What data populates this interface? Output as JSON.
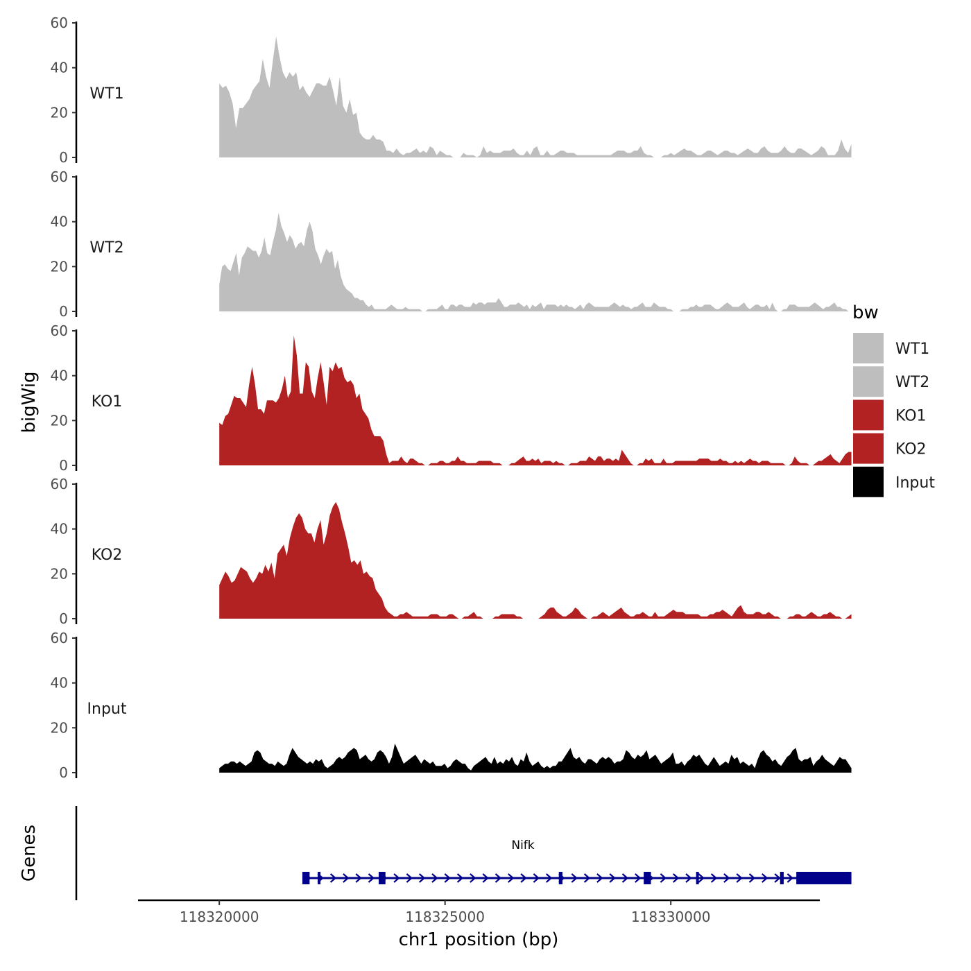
{
  "chart_data": {
    "type": "area",
    "ylabel": "bigWig",
    "xlabel": "chr1 position (bp)",
    "ylim": [
      0,
      60
    ],
    "yticks": [
      0,
      20,
      40,
      60
    ],
    "xlim": [
      118318200,
      118333300
    ],
    "xticks": [
      118320000,
      118325000,
      118330000
    ],
    "xtick_labels": [
      "118320000",
      "118325000",
      "118330000"
    ],
    "x_start": 118320000,
    "x_end": 118334000,
    "tracks": [
      {
        "name": "WT1",
        "label": "WT1",
        "color": "#bebebe",
        "values": [
          33,
          31,
          32,
          29,
          24,
          13,
          22,
          22,
          24,
          26,
          30,
          32,
          34,
          44,
          36,
          31,
          43,
          54,
          45,
          38,
          35,
          38,
          36,
          38,
          30,
          32,
          29,
          27,
          30,
          33,
          33,
          32,
          32,
          36,
          30,
          23,
          36,
          23,
          20,
          26,
          19,
          20,
          11,
          9,
          8,
          8,
          10,
          8,
          8,
          7,
          3,
          3,
          2,
          4,
          2,
          1,
          2,
          2,
          3,
          4,
          2,
          3,
          2,
          5,
          4,
          1,
          3,
          2,
          1,
          1,
          0,
          0,
          0,
          2,
          1,
          1,
          1,
          0,
          1,
          5,
          2,
          3,
          2,
          2,
          2,
          3,
          3,
          3,
          4,
          2,
          1,
          1,
          3,
          1,
          4,
          5,
          1,
          1,
          3,
          1,
          1,
          2,
          3,
          3,
          2,
          2,
          2,
          1,
          1,
          1,
          1,
          1,
          1,
          1,
          1,
          1,
          1,
          1,
          2,
          3,
          3,
          3,
          2,
          2,
          3,
          3,
          5,
          2,
          1,
          1,
          0,
          0,
          0,
          1,
          1,
          2,
          1,
          2,
          3,
          4,
          3,
          3,
          2,
          1,
          1,
          2,
          3,
          3,
          2,
          1,
          2,
          3,
          3,
          2,
          2,
          1,
          2,
          3,
          4,
          3,
          2,
          2,
          4,
          5,
          3,
          2,
          2,
          2,
          3,
          5,
          3,
          2,
          2,
          4,
          4,
          3,
          2,
          1,
          2,
          3,
          5,
          4,
          1,
          1,
          1,
          3,
          8,
          4,
          2,
          6
        ]
      },
      {
        "name": "WT2",
        "label": "WT2",
        "color": "#bebebe",
        "values": [
          12,
          20,
          21,
          19,
          18,
          22,
          26,
          16,
          24,
          26,
          29,
          28,
          27,
          27,
          24,
          27,
          33,
          26,
          25,
          31,
          36,
          44,
          38,
          35,
          31,
          34,
          32,
          28,
          30,
          31,
          29,
          36,
          40,
          36,
          28,
          25,
          21,
          25,
          28,
          26,
          27,
          19,
          23,
          16,
          12,
          10,
          9,
          8,
          6,
          6,
          5,
          5,
          3,
          2,
          3,
          1,
          1,
          1,
          1,
          1,
          2,
          3,
          2,
          1,
          1,
          1,
          2,
          1,
          1,
          1,
          1,
          1,
          0,
          0,
          1,
          1,
          1,
          1,
          2,
          3,
          1,
          1,
          3,
          3,
          2,
          3,
          3,
          2,
          2,
          2,
          4,
          3,
          4,
          4,
          3,
          4,
          4,
          4,
          4,
          6,
          4,
          2,
          2,
          3,
          3,
          3,
          4,
          3,
          2,
          3,
          1,
          3,
          2,
          3,
          4,
          1,
          3,
          3,
          3,
          3,
          2,
          3,
          2,
          3,
          2,
          2,
          1,
          2,
          3,
          1,
          3,
          4,
          3,
          2,
          2,
          2,
          2,
          2,
          2,
          3,
          4,
          3,
          2,
          3,
          2,
          2,
          1,
          2,
          2,
          3,
          4,
          2,
          2,
          2,
          4,
          3,
          2,
          2,
          2,
          1,
          1,
          0,
          0,
          0,
          1,
          1,
          1,
          2,
          2,
          3,
          2,
          2,
          3,
          3,
          3,
          2,
          1,
          1,
          2,
          3,
          4,
          3,
          2,
          2,
          2,
          3,
          4,
          2,
          1,
          2,
          3,
          3,
          2,
          2,
          3,
          1,
          4,
          1,
          0,
          0,
          1,
          1,
          3,
          3,
          3,
          2,
          2,
          2,
          2,
          2,
          3,
          4,
          3,
          2,
          1,
          2,
          2,
          3,
          4,
          2,
          2,
          1,
          1,
          0,
          0
        ]
      },
      {
        "name": "KO1",
        "label": "KO1",
        "color": "#b22222",
        "values": [
          19,
          18,
          22,
          23,
          27,
          31,
          30,
          30,
          28,
          26,
          36,
          44,
          36,
          25,
          25,
          23,
          29,
          29,
          29,
          28,
          30,
          34,
          40,
          30,
          33,
          58,
          49,
          32,
          32,
          46,
          44,
          33,
          30,
          39,
          46,
          37,
          27,
          44,
          42,
          46,
          43,
          44,
          39,
          37,
          38,
          36,
          30,
          32,
          25,
          23,
          21,
          16,
          13,
          13,
          13,
          11,
          5,
          1,
          2,
          2,
          2,
          4,
          2,
          1,
          3,
          3,
          2,
          1,
          1,
          0,
          0,
          1,
          1,
          1,
          2,
          2,
          1,
          1,
          2,
          2,
          4,
          2,
          2,
          1,
          1,
          1,
          1,
          2,
          2,
          2,
          2,
          2,
          1,
          1,
          1,
          0,
          0,
          0,
          1,
          1,
          2,
          3,
          4,
          2,
          2,
          3,
          2,
          3,
          1,
          2,
          2,
          2,
          1,
          2,
          1,
          1,
          0,
          0,
          1,
          1,
          1,
          2,
          2,
          2,
          4,
          3,
          2,
          4,
          4,
          2,
          3,
          3,
          2,
          3,
          2,
          7,
          5,
          3,
          1,
          0,
          0,
          1,
          1,
          3,
          2,
          3,
          1,
          1,
          1,
          3,
          1,
          1,
          1,
          2,
          2,
          2,
          2,
          2,
          2,
          2,
          2,
          3,
          3,
          3,
          3,
          2,
          2,
          2,
          3,
          2,
          2,
          1,
          1,
          2,
          1,
          2,
          1,
          2,
          3,
          2,
          2,
          1,
          2,
          2,
          2,
          1,
          1,
          1,
          1,
          1,
          0,
          0,
          1,
          4,
          2,
          1,
          1,
          1,
          0,
          0,
          1,
          2,
          2,
          3,
          4,
          5,
          3,
          2,
          1,
          3,
          5,
          6,
          6
        ]
      },
      {
        "name": "KO2",
        "label": "KO2",
        "color": "#b22222",
        "values": [
          15,
          18,
          21,
          19,
          16,
          17,
          20,
          23,
          22,
          21,
          18,
          16,
          18,
          21,
          20,
          24,
          21,
          25,
          18,
          29,
          31,
          33,
          28,
          36,
          41,
          45,
          47,
          45,
          40,
          38,
          38,
          34,
          40,
          44,
          33,
          38,
          46,
          50,
          52,
          49,
          43,
          38,
          32,
          25,
          26,
          24,
          26,
          20,
          21,
          19,
          18,
          13,
          11,
          9,
          5,
          3,
          2,
          1,
          1,
          2,
          2,
          3,
          2,
          1,
          1,
          1,
          1,
          1,
          1,
          2,
          2,
          2,
          1,
          1,
          1,
          2,
          2,
          1,
          0,
          0,
          1,
          1,
          2,
          3,
          1,
          1,
          0,
          0,
          0,
          0,
          1,
          1,
          2,
          2,
          2,
          2,
          2,
          1,
          1,
          0,
          0,
          0,
          0,
          0,
          0,
          1,
          2,
          4,
          5,
          5,
          3,
          2,
          1,
          1,
          2,
          3,
          5,
          4,
          2,
          1,
          0,
          0,
          1,
          1,
          2,
          3,
          2,
          1,
          2,
          3,
          4,
          5,
          3,
          2,
          1,
          1,
          2,
          2,
          3,
          2,
          1,
          1,
          3,
          1,
          1,
          1,
          2,
          3,
          4,
          3,
          3,
          3,
          2,
          2,
          2,
          2,
          2,
          1,
          1,
          1,
          2,
          2,
          3,
          3,
          4,
          3,
          2,
          1,
          3,
          5,
          6,
          3,
          2,
          2,
          2,
          3,
          3,
          2,
          2,
          3,
          2,
          1,
          1,
          0,
          0,
          0,
          1,
          1,
          2,
          2,
          1,
          1,
          2,
          3,
          2,
          1,
          1,
          2,
          2,
          3,
          2,
          1,
          1,
          0,
          0,
          1,
          2
        ]
      },
      {
        "name": "Input",
        "label": "Input",
        "color": "#000000",
        "values": [
          2,
          3,
          4,
          4,
          5,
          5,
          4,
          5,
          4,
          3,
          4,
          5,
          9,
          10,
          9,
          6,
          5,
          4,
          4,
          3,
          5,
          4,
          3,
          4,
          8,
          11,
          9,
          7,
          6,
          5,
          4,
          5,
          4,
          6,
          5,
          6,
          3,
          2,
          3,
          4,
          6,
          7,
          6,
          7,
          9,
          10,
          11,
          10,
          6,
          7,
          8,
          6,
          5,
          6,
          9,
          10,
          9,
          7,
          4,
          7,
          13,
          10,
          7,
          4,
          5,
          6,
          7,
          8,
          6,
          4,
          6,
          5,
          4,
          5,
          3,
          3,
          3,
          4,
          2,
          3,
          5,
          6,
          5,
          4,
          4,
          2,
          1,
          3,
          4,
          5,
          6,
          7,
          5,
          4,
          7,
          4,
          5,
          4,
          6,
          5,
          7,
          4,
          3,
          6,
          5,
          9,
          5,
          3,
          4,
          5,
          3,
          2,
          3,
          2,
          3,
          3,
          5,
          5,
          7,
          9,
          11,
          7,
          6,
          7,
          5,
          4,
          6,
          6,
          5,
          4,
          6,
          7,
          6,
          7,
          6,
          4,
          5,
          5,
          6,
          10,
          9,
          7,
          6,
          8,
          7,
          8,
          10,
          6,
          7,
          8,
          6,
          4,
          5,
          6,
          7,
          9,
          4,
          4,
          5,
          3,
          5,
          6,
          8,
          7,
          8,
          6,
          4,
          3,
          5,
          7,
          5,
          3,
          4,
          5,
          4,
          8,
          6,
          7,
          4,
          5,
          4,
          3,
          4,
          2,
          6,
          9,
          10,
          8,
          7,
          5,
          6,
          4,
          3,
          5,
          7,
          8,
          10,
          11,
          6,
          5,
          6,
          6,
          7,
          3,
          5,
          6,
          8,
          6,
          5,
          4,
          3,
          5,
          7,
          6,
          6,
          4,
          2
        ]
      }
    ],
    "genes_panel": {
      "ylabel": "Genes",
      "gene_name": "Nifk",
      "strand": "+",
      "tx_start": 118321840,
      "tx_end": 118334000,
      "exons": [
        [
          118321840,
          118322000
        ],
        [
          118322180,
          118322240
        ],
        [
          118323530,
          118323680
        ],
        [
          118327520,
          118327600
        ],
        [
          118329400,
          118329560
        ],
        [
          118330560,
          118330590
        ],
        [
          118332420,
          118332500
        ],
        [
          118332780,
          118334000
        ]
      ],
      "color": "#00008b"
    },
    "legend": {
      "title": "bw",
      "position": "right",
      "entries": [
        {
          "label": "WT1",
          "color": "#bebebe"
        },
        {
          "label": "WT2",
          "color": "#bebebe"
        },
        {
          "label": "KO1",
          "color": "#b22222"
        },
        {
          "label": "KO2",
          "color": "#b22222"
        },
        {
          "label": "Input",
          "color": "#000000"
        }
      ]
    }
  }
}
